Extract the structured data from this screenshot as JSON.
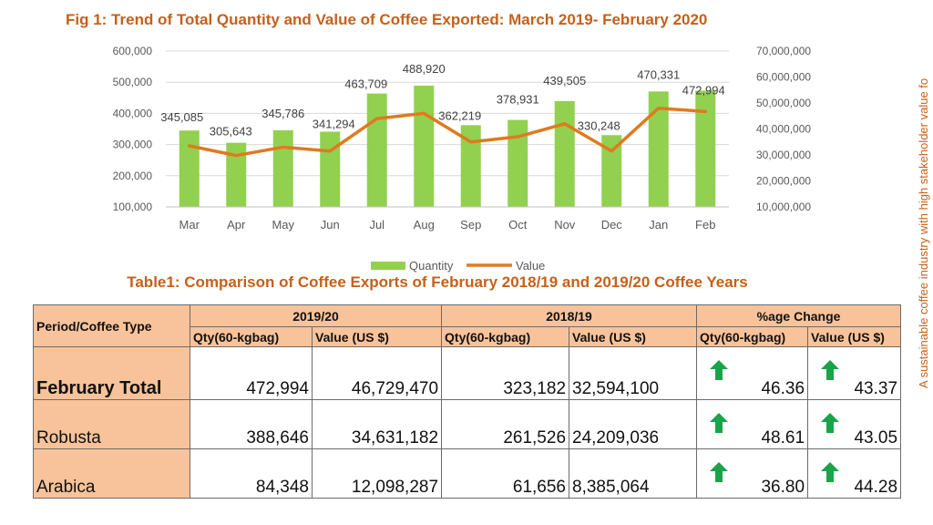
{
  "figure": {
    "title": "Fig 1: Trend of Total Quantity and Value of Coffee Exported: March 2019- February 2020",
    "side_text": "A sustainable coffee industry with high stakeholder value fo"
  },
  "chart_data": {
    "type": "bar",
    "title": "Fig 1: Trend of Total Quantity and Value of Coffee Exported: March 2019- February 2020",
    "categories": [
      "Mar",
      "Apr",
      "May",
      "Jun",
      "Jul",
      "Aug",
      "Sep",
      "Oct",
      "Nov",
      "Dec",
      "Jan",
      "Feb"
    ],
    "series": [
      {
        "name": "Quantity",
        "type": "bar",
        "axis": "left",
        "color": "#92d050",
        "values": [
          345085,
          305643,
          345786,
          341294,
          463709,
          488920,
          362219,
          378931,
          439505,
          330248,
          470331,
          472994
        ],
        "labels": [
          "345,085",
          "305,643",
          "345,786",
          "341,294",
          "463,709",
          "488,920",
          "362,219",
          "378,931",
          "439,505",
          "330,248",
          "470,331",
          "472,994"
        ]
      },
      {
        "name": "Value",
        "type": "line",
        "axis": "right",
        "color": "#e07a1f",
        "values": [
          33500000,
          29800000,
          33000000,
          31500000,
          44000000,
          46000000,
          35000000,
          37000000,
          42000000,
          31500000,
          48000000,
          46729470
        ]
      }
    ],
    "y_left": {
      "min": 100000,
      "max": 600000,
      "step": 100000,
      "ticks": [
        "100,000",
        "200,000",
        "300,000",
        "400,000",
        "500,000",
        "600,000"
      ]
    },
    "y_right": {
      "min": 10000000,
      "max": 70000000,
      "step": 10000000,
      "ticks": [
        "10,000,000",
        "20,000,000",
        "30,000,000",
        "40,000,000",
        "50,000,000",
        "60,000,000",
        "70,000,000"
      ]
    },
    "grid": true,
    "legend": "bottom"
  },
  "table": {
    "title": "Table1: Comparison of Coffee Exports of February 2018/19 and 2019/20 Coffee Years",
    "period_header": "Period/Coffee Type",
    "groups": [
      "2019/20",
      "2018/19",
      "%age Change"
    ],
    "subheaders": [
      "Qty(60-kgbag)",
      "Value (US $)",
      "Qty(60-kgbag)",
      "Value (US $)",
      "Qty(60-kgbag)",
      "Value (US $)"
    ],
    "rows": [
      {
        "label": "February  Total",
        "qty_2019": "472,994",
        "val_2019": "46,729,470",
        "qty_2018": "323,182",
        "val_2018": "32,594,100",
        "chg_qty": "46.36",
        "chg_val": "43.37"
      },
      {
        "label": "Robusta",
        "qty_2019": "388,646",
        "val_2019": "34,631,182",
        "qty_2018": "261,526",
        "val_2018": "24,209,036",
        "chg_qty": "48.61",
        "chg_val": "43.05"
      },
      {
        "label": "Arabica",
        "qty_2019": "84,348",
        "val_2019": "12,098,287",
        "qty_2018": "61,656",
        "val_2018": "8,385,064",
        "chg_qty": "36.80",
        "chg_val": "44.28"
      }
    ],
    "arrow_icon": "up-arrow-icon",
    "arrow_color": "#1aa34a",
    "header_color": "#f8c39a"
  }
}
